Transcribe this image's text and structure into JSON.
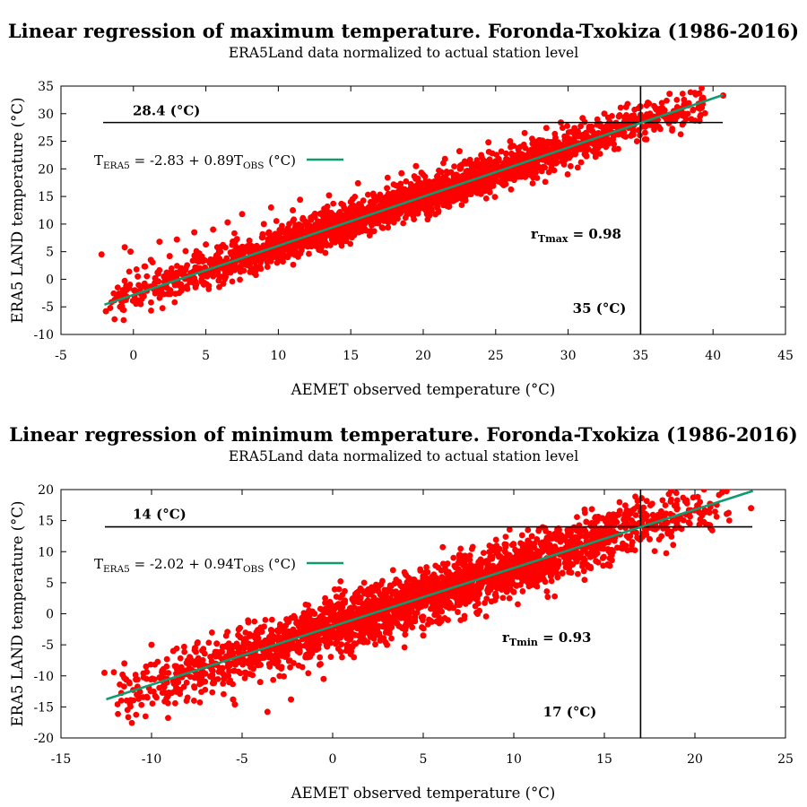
{
  "chart_data": [
    {
      "type": "scatter",
      "title": "Linear regression of maximum temperature. Foronda-Txokiza (1986-2016)",
      "subtitle": "ERA5Land data normalized to actual station level",
      "xlabel": "AEMET observed temperature (°C)",
      "ylabel": "ERA5 LAND temperature (°C)",
      "xlim": [
        -5,
        45
      ],
      "ylim": [
        -10,
        35
      ],
      "xticks": [
        "-5",
        "0",
        "5",
        "10",
        "15",
        "20",
        "25",
        "30",
        "35",
        "40",
        "45"
      ],
      "yticks": [
        "-10",
        "-5",
        "0",
        "5",
        "10",
        "15",
        "20",
        "25",
        "30",
        "35"
      ],
      "series": [
        {
          "name": "T_ERA5 = -2.83 + 0.89T_OBS (°C)",
          "kind": "regression-line",
          "intercept": -2.83,
          "slope": 0.89,
          "x_range": [
            -2,
            40.7
          ],
          "color": "#109b6f"
        },
        {
          "kind": "scatter-points",
          "color": "#ff0000",
          "points": [
            [
              -2.2,
              4.5
            ],
            [
              -1.9,
              -5.8
            ],
            [
              -1.6,
              -5.2
            ],
            [
              -1.3,
              -3.8
            ],
            [
              -1.0,
              -2.6
            ],
            [
              -0.8,
              -4.9
            ],
            [
              -0.6,
              -0.3
            ],
            [
              -0.6,
              5.8
            ],
            [
              -0.5,
              -3.3
            ],
            [
              -0.3,
              -1.6
            ],
            [
              -0.2,
              5.0
            ],
            [
              0.1,
              -2.0
            ],
            [
              0.3,
              0.5
            ],
            [
              0.5,
              -4.5
            ],
            [
              0.8,
              2.3
            ],
            [
              1.0,
              -1.4
            ],
            [
              1.2,
              3.5
            ],
            [
              1.5,
              0.2
            ],
            [
              1.8,
              6.8
            ],
            [
              2.0,
              -2.6
            ],
            [
              2.3,
              1.2
            ],
            [
              2.5,
              4.2
            ],
            [
              2.8,
              -0.5
            ],
            [
              3.0,
              7.2
            ],
            [
              3.3,
              2.0
            ],
            [
              3.6,
              5.1
            ],
            [
              4.0,
              1.0
            ],
            [
              4.2,
              8.5
            ],
            [
              4.5,
              3.2
            ],
            [
              5.0,
              6.3
            ],
            [
              5.2,
              -1.2
            ],
            [
              5.5,
              9.0
            ],
            [
              6.0,
              5.0
            ],
            [
              6.2,
              -0.8
            ],
            [
              6.5,
              10.3
            ],
            [
              7.0,
              4.8
            ],
            [
              7.5,
              11.8
            ],
            [
              8.0,
              7.0
            ],
            [
              8.5,
              3.6
            ],
            [
              9.0,
              10.0
            ],
            [
              9.5,
              13.0
            ],
            [
              10.0,
              8.2
            ],
            [
              10.5,
              6.5
            ],
            [
              11.0,
              12.5
            ],
            [
              11.5,
              14.4
            ],
            [
              12.0,
              9.0
            ],
            [
              12.5,
              7.2
            ],
            [
              13.0,
              12.0
            ],
            [
              13.5,
              15.2
            ],
            [
              14.0,
              10.5
            ],
            [
              14.5,
              8.5
            ],
            [
              15.0,
              14.0
            ],
            [
              15.5,
              17.4
            ],
            [
              16.0,
              12.0
            ],
            [
              16.5,
              10.0
            ],
            [
              17.0,
              15.0
            ],
            [
              17.5,
              16.5
            ],
            [
              18.0,
              12.0
            ],
            [
              18.5,
              19.2
            ],
            [
              19.0,
              14.5
            ],
            [
              19.5,
              20.5
            ],
            [
              20.0,
              15.5
            ],
            [
              20.5,
              13.5
            ],
            [
              21.0,
              18.0
            ],
            [
              21.5,
              21.8
            ],
            [
              22.0,
              16.5
            ],
            [
              22.5,
              23.2
            ],
            [
              23.0,
              19.0
            ],
            [
              23.5,
              17.5
            ],
            [
              24.0,
              22.5
            ],
            [
              24.5,
              24.8
            ],
            [
              25.0,
              19.5
            ],
            [
              25.5,
              20.5
            ],
            [
              26.0,
              25.0
            ],
            [
              26.5,
              22.0
            ],
            [
              27.0,
              26.5
            ],
            [
              27.5,
              21.5
            ],
            [
              28.0,
              25.2
            ],
            [
              28.5,
              27.4
            ],
            [
              29.0,
              23.5
            ],
            [
              29.5,
              28.4
            ],
            [
              30.0,
              24.0
            ],
            [
              30.5,
              27.0
            ],
            [
              31.0,
              29.2
            ],
            [
              31.5,
              25.5
            ],
            [
              32.0,
              28.0
            ],
            [
              32.5,
              30.0
            ],
            [
              33.0,
              26.5
            ],
            [
              33.5,
              29.5
            ],
            [
              34.0,
              31.2
            ],
            [
              34.5,
              27.0
            ],
            [
              35.0,
              29.8
            ],
            [
              35.5,
              32.0
            ],
            [
              36.0,
              28.6
            ],
            [
              36.5,
              31.0
            ],
            [
              37.0,
              33.6
            ],
            [
              37.5,
              30.0
            ],
            [
              38.0,
              32.5
            ],
            [
              38.5,
              29.0
            ],
            [
              39.0,
              31.8
            ],
            [
              40.7,
              33.3
            ]
          ]
        }
      ],
      "annotations": [
        {
          "kind": "hline",
          "y": 28.4,
          "label": "28.4 (°C)"
        },
        {
          "kind": "vline",
          "x": 35,
          "label": "35 (°C)"
        },
        {
          "kind": "correlation",
          "symbol": "r",
          "subscript": "Tmax",
          "value": "= 0.98"
        }
      ],
      "legend": {
        "placement": "upper-left",
        "main": "T",
        "sub1": "ERA5",
        "mid": " = -2.83 + 0.89T",
        "sub2": "OBS",
        "tail": " (°C)"
      }
    },
    {
      "type": "scatter",
      "title": "Linear regression of minimum temperature. Foronda-Txokiza (1986-2016)",
      "subtitle": "ERA5Land data normalized to actual station level",
      "xlabel": "AEMET observed temperature (°C)",
      "ylabel": "ERA5 LAND temperature (°C)",
      "xlim": [
        -15,
        25
      ],
      "ylim": [
        -20,
        20
      ],
      "xticks": [
        "-15",
        "-10",
        "-5",
        "0",
        "5",
        "10",
        "15",
        "20",
        "25"
      ],
      "yticks": [
        "-20",
        "-15",
        "-10",
        "-5",
        "0",
        "5",
        "10",
        "15",
        "20"
      ],
      "series": [
        {
          "name": "T_ERA5 = -2.02 + 0.94T_OBS (°C)",
          "kind": "regression-line",
          "intercept": -2.02,
          "slope": 0.94,
          "x_range": [
            -12.5,
            23.2
          ],
          "color": "#109b6f"
        },
        {
          "kind": "scatter-points",
          "color": "#ff0000",
          "points": [
            [
              -12.6,
              -9.5
            ],
            [
              -11.6,
              -9.8
            ],
            [
              -11.5,
              -8.0
            ],
            [
              -10.3,
              -8.5
            ],
            [
              -10.0,
              -5.0
            ],
            [
              -9.3,
              -11.8
            ],
            [
              -8.8,
              -6.0
            ],
            [
              -8.4,
              -9.5
            ],
            [
              -8.0,
              -7.5
            ],
            [
              -7.6,
              -5.5
            ],
            [
              -7.2,
              -9.3
            ],
            [
              -6.8,
              -8.5
            ],
            [
              -6.4,
              -4.8
            ],
            [
              -6.0,
              -10.5
            ],
            [
              -5.8,
              -7.0
            ],
            [
              -5.5,
              -13.8
            ],
            [
              -5.4,
              -14.6
            ],
            [
              -5.1,
              -3.8
            ],
            [
              -4.8,
              -9.5
            ],
            [
              -4.5,
              -6.0
            ],
            [
              -4.0,
              -11.0
            ],
            [
              -3.6,
              -15.8
            ],
            [
              -3.4,
              -2.6
            ],
            [
              -3.0,
              -8.5
            ],
            [
              -2.6,
              -5.0
            ],
            [
              -2.3,
              -13.8
            ],
            [
              -2.0,
              -1.5
            ],
            [
              -1.5,
              -7.0
            ],
            [
              -1.0,
              0.0
            ],
            [
              -0.5,
              -10.5
            ],
            [
              0.0,
              -3.5
            ],
            [
              0.5,
              1.2
            ],
            [
              1.0,
              -6.5
            ],
            [
              1.5,
              2.5
            ],
            [
              2.0,
              -2.0
            ],
            [
              2.5,
              4.2
            ],
            [
              3.0,
              -5.0
            ],
            [
              3.5,
              3.0
            ],
            [
              4.0,
              -0.5
            ],
            [
              4.5,
              5.5
            ],
            [
              5.0,
              -3.5
            ],
            [
              5.5,
              2.5
            ],
            [
              6.0,
              7.0
            ],
            [
              6.5,
              1.5
            ],
            [
              7.0,
              9.5
            ],
            [
              7.5,
              4.0
            ],
            [
              8.0,
              0.0
            ],
            [
              8.5,
              8.5
            ],
            [
              9.0,
              5.0
            ],
            [
              9.5,
              11.2
            ],
            [
              10.0,
              3.5
            ],
            [
              10.5,
              8.0
            ],
            [
              11.0,
              12.5
            ],
            [
              11.5,
              6.0
            ],
            [
              12.0,
              10.5
            ],
            [
              12.5,
              13.5
            ],
            [
              13.0,
              7.5
            ],
            [
              13.5,
              11.0
            ],
            [
              14.0,
              14.8
            ],
            [
              14.5,
              9.5
            ],
            [
              15.0,
              12.5
            ],
            [
              15.5,
              16.0
            ],
            [
              16.0,
              10.5
            ],
            [
              16.5,
              14.0
            ],
            [
              17.0,
              16.5
            ],
            [
              17.5,
              12.0
            ],
            [
              18.0,
              15.0
            ],
            [
              18.5,
              13.0
            ],
            [
              19.0,
              14.5
            ],
            [
              19.5,
              16.0
            ],
            [
              20.3,
              15.2
            ],
            [
              23.1,
              17.0
            ]
          ]
        }
      ],
      "annotations": [
        {
          "kind": "hline",
          "y": 14,
          "label": "14 (°C)"
        },
        {
          "kind": "vline",
          "x": 17,
          "label": "17 (°C)"
        },
        {
          "kind": "correlation",
          "symbol": "r",
          "subscript": "Tmin",
          "value": "= 0.93"
        }
      ],
      "legend": {
        "placement": "upper-left",
        "main": "T",
        "sub1": "ERA5",
        "mid": " = -2.02 + 0.94T",
        "sub2": "OBS",
        "tail": " (°C)"
      }
    }
  ]
}
